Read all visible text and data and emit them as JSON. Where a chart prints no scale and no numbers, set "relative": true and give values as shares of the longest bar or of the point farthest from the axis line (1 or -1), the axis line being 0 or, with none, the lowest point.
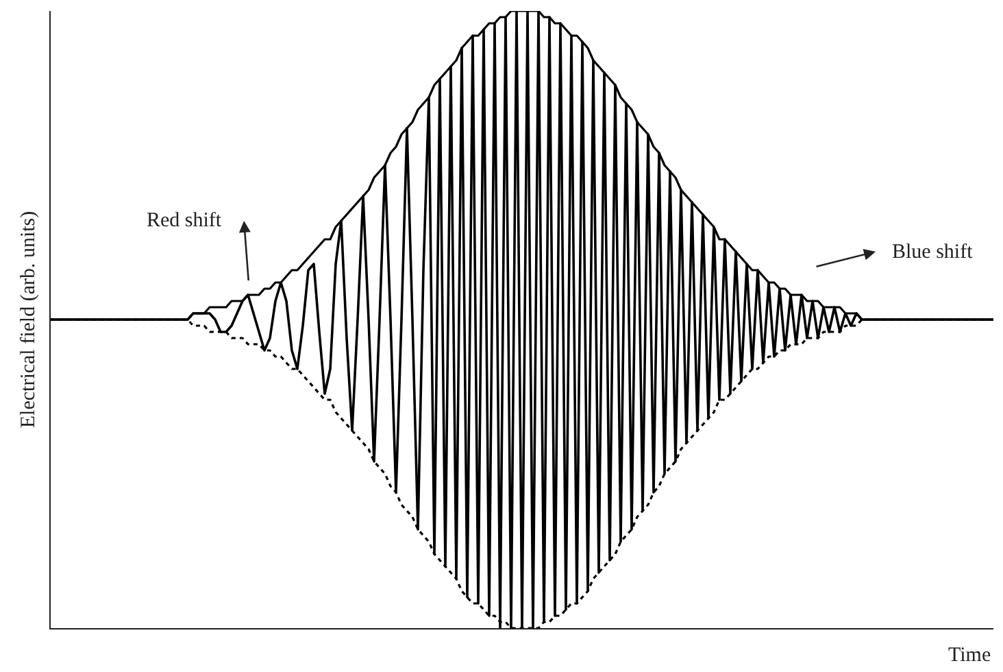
{
  "chart_data": {
    "type": "line",
    "relative": true,
    "xlabel": "Time",
    "ylabel": "Electrical field (arb. units)",
    "marker": "none",
    "annotations": [
      "Red shift",
      "Blue shift"
    ],
    "categories": [
      null,
      null,
      null,
      null,
      null,
      null,
      null,
      null,
      null,
      null,
      null,
      null,
      null,
      null,
      null,
      null,
      null,
      null,
      null,
      null,
      null,
      null,
      null,
      null,
      null,
      null,
      null,
      null,
      null,
      null,
      null,
      null,
      null,
      null,
      null,
      null,
      null,
      null,
      null,
      null,
      null,
      null,
      null,
      null,
      null,
      null,
      null,
      null,
      null,
      null,
      null,
      null,
      null,
      null,
      null,
      null,
      null,
      null,
      null,
      null,
      null,
      null,
      null,
      null,
      null,
      null,
      null,
      null,
      null,
      null,
      null,
      null,
      null,
      null,
      null,
      null,
      null,
      null,
      null,
      null,
      null,
      null,
      null,
      null,
      null,
      null,
      null,
      null,
      null,
      null,
      null,
      null,
      null,
      null,
      null,
      null,
      null,
      null,
      null,
      null,
      null,
      null,
      null,
      null,
      null,
      null,
      null,
      null,
      null,
      null,
      null,
      null,
      null,
      null,
      null,
      null,
      null,
      null,
      null,
      null,
      null,
      null,
      null,
      null,
      null,
      null,
      null,
      null,
      null,
      null,
      null,
      null,
      null,
      null,
      null,
      null,
      null,
      null,
      null,
      null,
      null,
      null,
      null,
      null,
      null,
      null,
      null,
      null,
      null,
      null,
      null,
      null,
      null,
      null,
      null,
      null,
      null,
      null,
      null,
      null,
      null,
      null,
      null,
      null,
      null,
      null,
      null,
      null,
      null,
      null,
      null,
      null,
      null
    ],
    "series": [
      {
        "color": "#000000",
        "line_style": "solid",
        "values": [
          0.5,
          0.5,
          0.5,
          0.5,
          0.5,
          0.5,
          0.5,
          0.5,
          0.5,
          0.5,
          0.5,
          0.5,
          0.5,
          0.5,
          0.5,
          0.5,
          0.5,
          0.5,
          0.5,
          0.5,
          0.5,
          0.5,
          0.5,
          0.5,
          0.5,
          0.5,
          0.51,
          0.51,
          0.51,
          0.52,
          0.52,
          0.52,
          0.52,
          0.53,
          0.53,
          0.53,
          0.54,
          0.54,
          0.54,
          0.55,
          0.55,
          0.56,
          0.56,
          0.57,
          0.58,
          0.58,
          0.59,
          0.6,
          0.61,
          0.62,
          0.63,
          0.63,
          0.65,
          0.66,
          0.67,
          0.68,
          0.69,
          0.7,
          0.71,
          0.73,
          0.74,
          0.75,
          0.77,
          0.78,
          0.8,
          0.81,
          0.82,
          0.84,
          0.85,
          0.86,
          0.88,
          0.89,
          0.9,
          0.91,
          0.92,
          0.94,
          0.95,
          0.96,
          0.96,
          0.97,
          0.98,
          0.98,
          0.99,
          0.99,
          1.0,
          1.0,
          1.0,
          1.0,
          1.0,
          1.0,
          0.99,
          0.99,
          0.98,
          0.98,
          0.97,
          0.96,
          0.96,
          0.95,
          0.94,
          0.92,
          0.91,
          0.9,
          0.89,
          0.88,
          0.86,
          0.85,
          0.84,
          0.82,
          0.81,
          0.8,
          0.78,
          0.77,
          0.75,
          0.74,
          0.73,
          0.71,
          0.7,
          0.69,
          0.68,
          0.67,
          0.66,
          0.65,
          0.63,
          0.63,
          0.62,
          0.61,
          0.6,
          0.59,
          0.58,
          0.58,
          0.57,
          0.56,
          0.56,
          0.55,
          0.55,
          0.54,
          0.54,
          0.54,
          0.53,
          0.53,
          0.53,
          0.52,
          0.52,
          0.52,
          0.52,
          0.51,
          0.51,
          0.51,
          0.5,
          0.5,
          0.5,
          0.5,
          0.5,
          0.5,
          0.5,
          0.5,
          0.5,
          0.5,
          0.5,
          0.5,
          0.5,
          0.5,
          0.5,
          0.5,
          0.5,
          0.5,
          0.5,
          0.5,
          0.5,
          0.5,
          0.5,
          0.5,
          0.5
        ]
      },
      {
        "color": "#000000",
        "line_style": "dotted",
        "values": [
          0.5,
          0.5,
          0.5,
          0.5,
          0.5,
          0.5,
          0.5,
          0.5,
          0.5,
          0.5,
          0.5,
          0.5,
          0.5,
          0.5,
          0.5,
          0.5,
          0.5,
          0.5,
          0.5,
          0.5,
          0.5,
          0.5,
          0.5,
          0.5,
          0.5,
          0.5,
          0.49,
          0.49,
          0.49,
          0.48,
          0.48,
          0.48,
          0.48,
          0.47,
          0.47,
          0.47,
          0.46,
          0.46,
          0.46,
          0.45,
          0.45,
          0.44,
          0.44,
          0.43,
          0.42,
          0.42,
          0.41,
          0.4,
          0.39,
          0.38,
          0.37,
          0.37,
          0.35,
          0.34,
          0.33,
          0.32,
          0.31,
          0.3,
          0.29,
          0.27,
          0.26,
          0.25,
          0.23,
          0.22,
          0.2,
          0.19,
          0.18,
          0.16,
          0.15,
          0.14,
          0.12,
          0.11,
          0.1,
          0.09,
          0.08,
          0.06,
          0.05,
          0.04,
          0.04,
          0.03,
          0.02,
          0.02,
          0.01,
          0.01,
          0.0,
          0.0,
          0.0,
          0.0,
          0.0,
          0.0,
          0.01,
          0.01,
          0.02,
          0.02,
          0.03,
          0.04,
          0.04,
          0.05,
          0.06,
          0.08,
          0.09,
          0.1,
          0.11,
          0.12,
          0.14,
          0.15,
          0.16,
          0.18,
          0.19,
          0.2,
          0.22,
          0.23,
          0.25,
          0.26,
          0.27,
          0.29,
          0.3,
          0.31,
          0.32,
          0.33,
          0.34,
          0.35,
          0.37,
          0.37,
          0.38,
          0.39,
          0.4,
          0.41,
          0.42,
          0.42,
          0.43,
          0.44,
          0.44,
          0.45,
          0.45,
          0.46,
          0.46,
          0.46,
          0.47,
          0.47,
          0.47,
          0.48,
          0.48,
          0.48,
          0.48,
          0.49,
          0.49,
          0.49,
          0.5,
          0.5,
          0.5,
          0.5,
          0.5,
          0.5,
          0.5,
          0.5,
          0.5,
          0.5,
          0.5,
          0.5,
          0.5,
          0.5,
          0.5,
          0.5,
          0.5,
          0.5,
          0.5,
          0.5,
          0.5,
          0.5,
          0.5,
          0.5,
          0.5
        ]
      },
      {
        "color": "#000000",
        "line_style": "solid",
        "values": [
          0.5,
          0.5,
          0.5,
          0.5,
          0.5,
          0.5,
          0.5,
          0.5,
          0.5,
          0.5,
          0.5,
          0.5,
          0.5,
          0.5,
          0.5,
          0.5,
          0.5,
          0.5,
          0.5,
          0.5,
          0.5,
          0.5,
          0.5,
          0.5,
          0.5,
          0.5,
          0.51,
          0.51,
          0.51,
          0.51,
          0.5,
          0.48,
          0.48,
          0.49,
          0.51,
          0.53,
          0.54,
          0.51,
          0.48,
          0.45,
          0.47,
          0.53,
          0.56,
          0.53,
          0.45,
          0.42,
          0.49,
          0.58,
          0.59,
          0.48,
          0.38,
          0.42,
          0.59,
          0.66,
          0.47,
          0.32,
          0.5,
          0.7,
          0.5,
          0.27,
          0.5,
          0.75,
          0.5,
          0.22,
          0.5,
          0.81,
          0.5,
          0.16,
          0.58,
          0.86,
          0.12,
          0.89,
          0.1,
          0.91,
          0.08,
          0.94,
          0.05,
          0.96,
          0.04,
          0.97,
          0.02,
          0.98,
          0.0,
          0.99,
          0.0,
          1.0,
          0.0,
          1.0,
          0.0,
          1.0,
          0.01,
          0.99,
          0.02,
          0.98,
          0.03,
          0.96,
          0.04,
          0.95,
          0.06,
          0.92,
          0.09,
          0.9,
          0.11,
          0.88,
          0.14,
          0.85,
          0.16,
          0.82,
          0.19,
          0.8,
          0.22,
          0.77,
          0.25,
          0.74,
          0.27,
          0.71,
          0.3,
          0.69,
          0.32,
          0.67,
          0.34,
          0.65,
          0.37,
          0.63,
          0.38,
          0.61,
          0.4,
          0.59,
          0.42,
          0.58,
          0.43,
          0.56,
          0.44,
          0.55,
          0.45,
          0.54,
          0.46,
          0.54,
          0.47,
          0.53,
          0.47,
          0.52,
          0.48,
          0.52,
          0.48,
          0.51,
          0.49,
          0.51,
          0.5,
          0.5,
          0.5,
          0.5,
          0.5,
          0.5,
          0.5,
          0.5,
          0.5,
          0.5,
          0.5,
          0.5,
          0.5,
          0.5,
          0.5,
          0.5,
          0.5,
          0.5,
          0.5,
          0.5,
          0.5,
          0.5,
          0.5,
          0.5,
          0.5
        ]
      }
    ]
  }
}
